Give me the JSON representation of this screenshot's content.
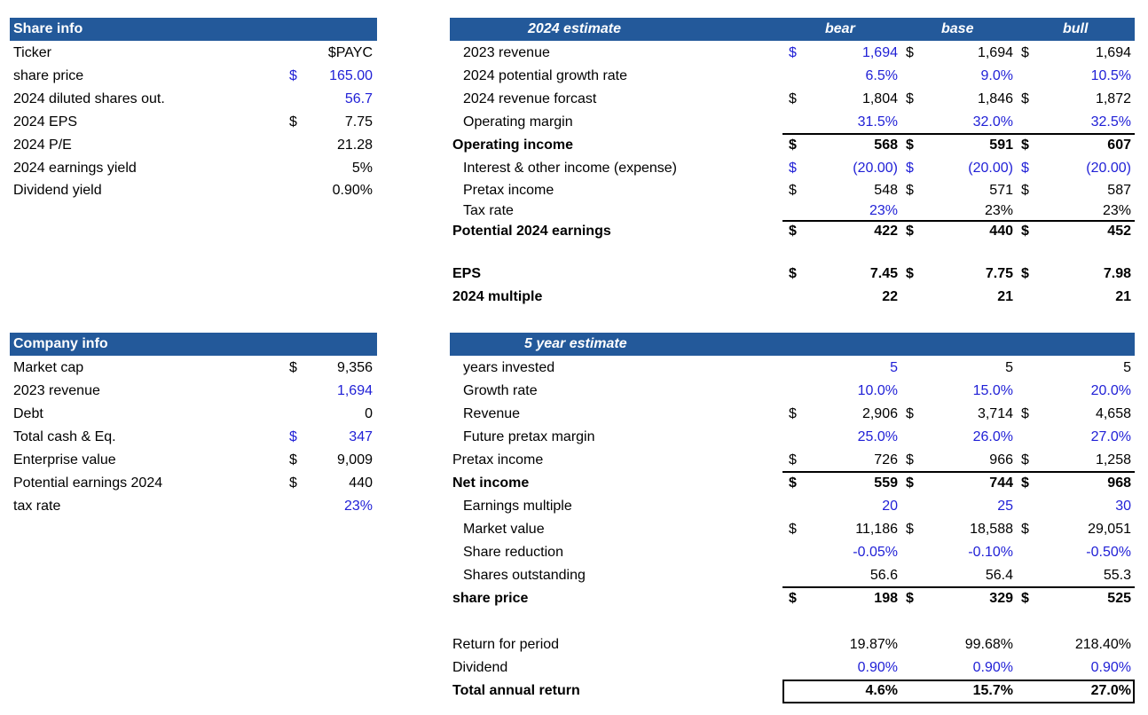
{
  "colors": {
    "header_bg": "#23599a",
    "input_blue": "#1f1fd6"
  },
  "share_info": {
    "title": "Share info",
    "rows": [
      {
        "label": "Ticker",
        "dollar": "",
        "value": "$PAYC",
        "blue": false
      },
      {
        "label": "share price",
        "dollar": "$",
        "value": "165.00",
        "blue": true
      },
      {
        "label": "2024 diluted shares out.",
        "dollar": "",
        "value": "56.7",
        "blue": true
      },
      {
        "label": "2024 EPS",
        "dollar": "$",
        "value": "7.75",
        "blue": false
      },
      {
        "label": "2024 P/E",
        "dollar": "",
        "value": "21.28",
        "blue": false
      },
      {
        "label": "2024 earnings yield",
        "dollar": "",
        "value": "5%",
        "blue": false
      },
      {
        "label": "Dividend yield",
        "dollar": "",
        "value": "0.90%",
        "blue": false
      }
    ]
  },
  "company_info": {
    "title": "Company info",
    "rows": [
      {
        "label": "Market cap",
        "dollar": "$",
        "value": "9,356",
        "blue": false
      },
      {
        "label": "2023 revenue",
        "dollar": "",
        "value": "1,694",
        "blue": true
      },
      {
        "label": "Debt",
        "dollar": "",
        "value": "0",
        "blue": false
      },
      {
        "label": "Total cash & Eq.",
        "dollar": "$",
        "value": "347",
        "blue": true
      },
      {
        "label": "Enterprise value",
        "dollar": "$",
        "value": "9,009",
        "blue": false
      },
      {
        "label": "Potential earnings 2024",
        "dollar": "$",
        "value": "440",
        "blue": false
      },
      {
        "label": "tax rate",
        "dollar": "",
        "value": "23%",
        "blue": true
      }
    ]
  },
  "estimate_2024": {
    "title": "2024 estimate",
    "cols": [
      "bear",
      "base",
      "bull"
    ],
    "rows": [
      {
        "label": "2023 revenue",
        "indent": true,
        "bold": false,
        "d": [
          "$",
          "$",
          "$"
        ],
        "v": [
          "1,694",
          "1,694",
          "1,694"
        ],
        "blue": [
          true,
          false,
          false
        ],
        "dblue": [
          true,
          false,
          false
        ]
      },
      {
        "label": "2024 potential growth rate",
        "indent": true,
        "bold": false,
        "d": [
          "",
          "",
          ""
        ],
        "v": [
          "6.5%",
          "9.0%",
          "10.5%"
        ],
        "blue": [
          true,
          true,
          true
        ],
        "dblue": [
          false,
          false,
          false
        ]
      },
      {
        "label": "2024 revenue forcast",
        "indent": true,
        "bold": false,
        "d": [
          "$",
          "$",
          "$"
        ],
        "v": [
          "1,804",
          "1,846",
          "1,872"
        ],
        "blue": [
          false,
          false,
          false
        ],
        "dblue": [
          false,
          false,
          false
        ]
      },
      {
        "label": "Operating margin",
        "indent": true,
        "bold": false,
        "d": [
          "",
          "",
          ""
        ],
        "v": [
          "31.5%",
          "32.0%",
          "32.5%"
        ],
        "blue": [
          true,
          true,
          true
        ],
        "dblue": [
          false,
          false,
          false
        ]
      },
      {
        "label": "Operating income",
        "indent": false,
        "bold": true,
        "d": [
          "$",
          "$",
          "$"
        ],
        "v": [
          "568",
          "591",
          "607"
        ],
        "blue": [
          false,
          false,
          false
        ],
        "dblue": [
          false,
          false,
          false
        ]
      },
      {
        "label": "Interest & other income (expense)",
        "indent": true,
        "bold": false,
        "d": [
          "$",
          "$",
          "$"
        ],
        "v": [
          "(20.00)",
          "(20.00)",
          "(20.00)"
        ],
        "blue": [
          true,
          true,
          true
        ],
        "dblue": [
          true,
          true,
          true
        ]
      },
      {
        "label": "Pretax income",
        "indent": true,
        "bold": false,
        "d": [
          "$",
          "$",
          "$"
        ],
        "v": [
          "548",
          "571",
          "587"
        ],
        "blue": [
          false,
          false,
          false
        ],
        "dblue": [
          false,
          false,
          false
        ]
      },
      {
        "label": "Tax rate",
        "indent": true,
        "bold": false,
        "d": [
          "",
          "",
          ""
        ],
        "v": [
          "23%",
          "23%",
          "23%"
        ],
        "blue": [
          true,
          false,
          false
        ],
        "dblue": [
          false,
          false,
          false
        ]
      },
      {
        "label": "Potential 2024 earnings",
        "indent": false,
        "bold": true,
        "d": [
          "$",
          "$",
          "$"
        ],
        "v": [
          "422",
          "440",
          "452"
        ],
        "blue": [
          false,
          false,
          false
        ],
        "dblue": [
          false,
          false,
          false
        ]
      },
      {
        "label": "EPS",
        "indent": false,
        "bold": true,
        "d": [
          "$",
          "$",
          "$"
        ],
        "v": [
          "7.45",
          "7.75",
          "7.98"
        ],
        "blue": [
          false,
          false,
          false
        ],
        "dblue": [
          false,
          false,
          false
        ]
      },
      {
        "label": "2024 multiple",
        "indent": false,
        "bold": true,
        "d": [
          "",
          "",
          ""
        ],
        "v": [
          "22",
          "21",
          "21"
        ],
        "blue": [
          false,
          false,
          false
        ],
        "dblue": [
          false,
          false,
          false
        ]
      }
    ]
  },
  "estimate_5yr": {
    "title": "5 year estimate",
    "rows": [
      {
        "label": "years invested",
        "indent": true,
        "bold": false,
        "d": [
          "",
          "",
          ""
        ],
        "v": [
          "5",
          "5",
          "5"
        ],
        "blue": [
          true,
          false,
          false
        ],
        "dblue": [
          false,
          false,
          false
        ]
      },
      {
        "label": "Growth rate",
        "indent": true,
        "bold": false,
        "d": [
          "",
          "",
          ""
        ],
        "v": [
          "10.0%",
          "15.0%",
          "20.0%"
        ],
        "blue": [
          true,
          true,
          true
        ],
        "dblue": [
          false,
          false,
          false
        ]
      },
      {
        "label": "Revenue",
        "indent": true,
        "bold": false,
        "d": [
          "$",
          "$",
          "$"
        ],
        "v": [
          "2,906",
          "3,714",
          "4,658"
        ],
        "blue": [
          false,
          false,
          false
        ],
        "dblue": [
          false,
          false,
          false
        ]
      },
      {
        "label": "Future pretax margin",
        "indent": true,
        "bold": false,
        "d": [
          "",
          "",
          ""
        ],
        "v": [
          "25.0%",
          "26.0%",
          "27.0%"
        ],
        "blue": [
          true,
          true,
          true
        ],
        "dblue": [
          false,
          false,
          false
        ]
      },
      {
        "label": "Pretax income",
        "indent": false,
        "bold": false,
        "d": [
          "$",
          "$",
          "$"
        ],
        "v": [
          "726",
          "966",
          "1,258"
        ],
        "blue": [
          false,
          false,
          false
        ],
        "dblue": [
          false,
          false,
          false
        ]
      },
      {
        "label": "Net income",
        "indent": false,
        "bold": true,
        "d": [
          "$",
          "$",
          "$"
        ],
        "v": [
          "559",
          "744",
          "968"
        ],
        "blue": [
          false,
          false,
          false
        ],
        "dblue": [
          false,
          false,
          false
        ]
      },
      {
        "label": "Earnings multiple",
        "indent": true,
        "bold": false,
        "d": [
          "",
          "",
          ""
        ],
        "v": [
          "20",
          "25",
          "30"
        ],
        "blue": [
          true,
          true,
          true
        ],
        "dblue": [
          false,
          false,
          false
        ]
      },
      {
        "label": "Market value",
        "indent": true,
        "bold": false,
        "d": [
          "$",
          "$",
          "$"
        ],
        "v": [
          "11,186",
          "18,588",
          "29,051"
        ],
        "blue": [
          false,
          false,
          false
        ],
        "dblue": [
          false,
          false,
          false
        ]
      },
      {
        "label": "Share reduction",
        "indent": true,
        "bold": false,
        "d": [
          "",
          "",
          ""
        ],
        "v": [
          "-0.05%",
          "-0.10%",
          "-0.50%"
        ],
        "blue": [
          true,
          true,
          true
        ],
        "dblue": [
          false,
          false,
          false
        ]
      },
      {
        "label": "Shares outstanding",
        "indent": true,
        "bold": false,
        "d": [
          "",
          "",
          ""
        ],
        "v": [
          "56.6",
          "56.4",
          "55.3"
        ],
        "blue": [
          false,
          false,
          false
        ],
        "dblue": [
          false,
          false,
          false
        ]
      },
      {
        "label": "share price",
        "indent": false,
        "bold": true,
        "d": [
          "$",
          "$",
          "$"
        ],
        "v": [
          "198",
          "329",
          "525"
        ],
        "blue": [
          false,
          false,
          false
        ],
        "dblue": [
          false,
          false,
          false
        ]
      },
      {
        "label": "Return for period",
        "indent": false,
        "bold": false,
        "d": [
          "",
          "",
          ""
        ],
        "v": [
          "19.87%",
          "99.68%",
          "218.40%"
        ],
        "blue": [
          false,
          false,
          false
        ],
        "dblue": [
          false,
          false,
          false
        ]
      },
      {
        "label": "Dividend",
        "indent": false,
        "bold": false,
        "d": [
          "",
          "",
          ""
        ],
        "v": [
          "0.90%",
          "0.90%",
          "0.90%"
        ],
        "blue": [
          true,
          true,
          true
        ],
        "dblue": [
          false,
          false,
          false
        ]
      },
      {
        "label": "Total annual return",
        "indent": false,
        "bold": true,
        "d": [
          "",
          "",
          ""
        ],
        "v": [
          "4.6%",
          "15.7%",
          "27.0%"
        ],
        "blue": [
          false,
          false,
          false
        ],
        "dblue": [
          false,
          false,
          false
        ]
      }
    ]
  }
}
